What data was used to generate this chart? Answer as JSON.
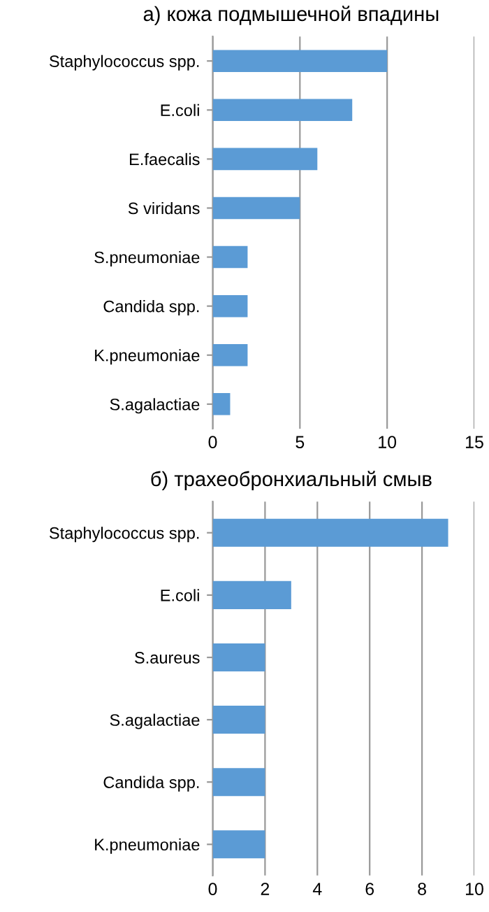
{
  "chart_data": [
    {
      "type": "bar",
      "orientation": "horizontal",
      "title": "а) кожа подмышечной впадины",
      "categories": [
        "Staphylococcus spp.",
        "E.coli",
        "E.faecalis",
        "S viridans",
        "S.pneumoniae",
        "Candida spp.",
        "K.pneumoniae",
        "S.agalactiae"
      ],
      "values": [
        10,
        8,
        6,
        5,
        2,
        2,
        2,
        1
      ],
      "color": "#5b9bd5",
      "xlim": [
        0,
        15
      ],
      "xticks": [
        0,
        5,
        10,
        15
      ],
      "grid": "x"
    },
    {
      "type": "bar",
      "orientation": "horizontal",
      "title": "б) трахеобронхиальный смыв",
      "categories": [
        "Staphylococcus spp.",
        "E.coli",
        "S.aureus",
        "S.agalactiae",
        "Candida spp.",
        "K.pneumoniae"
      ],
      "values": [
        9,
        3,
        2,
        2,
        2,
        2
      ],
      "color": "#5b9bd5",
      "xlim": [
        0,
        10
      ],
      "xticks": [
        0,
        2,
        4,
        6,
        8,
        10
      ],
      "grid": "x"
    }
  ]
}
